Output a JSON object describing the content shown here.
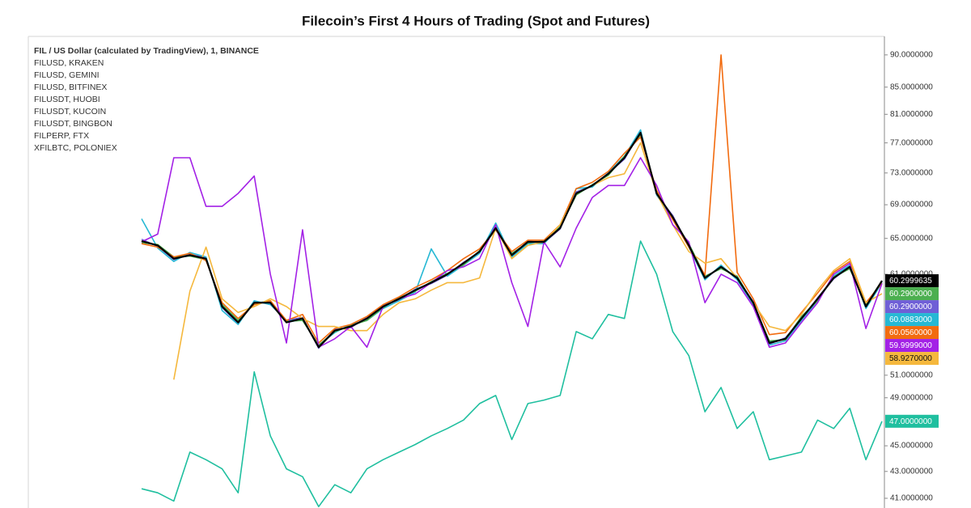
{
  "chart_data": {
    "type": "line",
    "title": "Filecoin’s First 4 Hours of Trading (Spot and Futures)",
    "log_scale": true,
    "ylim": [
      40.3,
      93
    ],
    "yticks": [
      {
        "value": 41,
        "label": "41.0000000"
      },
      {
        "value": 43,
        "label": "43.0000000"
      },
      {
        "value": 45,
        "label": "45.0000000"
      },
      {
        "value": 49,
        "label": "49.0000000"
      },
      {
        "value": 51,
        "label": "51.0000000"
      },
      {
        "value": 61,
        "label": "61.0000000"
      },
      {
        "value": 65,
        "label": "65.0000000"
      },
      {
        "value": 69,
        "label": "69.0000000"
      },
      {
        "value": 73,
        "label": "73.0000000"
      },
      {
        "value": 77,
        "label": "77.0000000"
      },
      {
        "value": 81,
        "label": "81.0000000"
      },
      {
        "value": 85,
        "label": "85.0000000"
      },
      {
        "value": 90,
        "label": "90.0000000"
      }
    ],
    "series": [
      {
        "name": "FIL / US Dollar (calculated by TradingView), 1, BINANCE",
        "color": "#000000",
        "last_price": 60.2999635,
        "values": [
          64.7,
          64.2,
          62.7,
          63.1,
          62.7,
          57.6,
          56.0,
          58.0,
          58.0,
          56.0,
          56.4,
          53.6,
          55.2,
          55.6,
          56.4,
          57.6,
          58.4,
          59.3,
          60.1,
          61.0,
          62.2,
          63.5,
          66.2,
          63.1,
          64.6,
          64.6,
          66.2,
          70.4,
          71.4,
          72.9,
          75.0,
          78.4,
          70.4,
          67.5,
          64.2,
          60.6,
          61.8,
          60.6,
          58.0,
          54.0,
          54.4,
          56.4,
          58.4,
          60.6,
          61.8,
          57.6,
          60.2999635
        ]
      },
      {
        "name": "FILUSD, KRAKEN",
        "color": "#a321e6",
        "last_price": {
          "value": 59.9999,
          "label": "59.9999000"
        },
        "values": [
          64.6,
          65.5,
          75.0,
          75.0,
          68.8,
          68.8,
          70.4,
          72.6,
          61.0,
          54.0,
          66.0,
          53.6,
          54.4,
          55.6,
          53.6,
          57.6,
          58.4,
          58.9,
          60.1,
          61.4,
          61.8,
          62.7,
          66.6,
          60.1,
          55.6,
          64.6,
          61.8,
          66.2,
          69.9,
          71.4,
          71.4,
          75.0,
          71.4,
          66.6,
          64.6,
          58.0,
          61.0,
          60.1,
          57.6,
          53.6,
          54.0,
          56.0,
          58.0,
          61.0,
          62.2,
          55.4,
          59.9999
        ]
      },
      {
        "name": "FILUSD, GEMINI",
        "color": "#f5b83d",
        "last_price": {
          "value": 58.927,
          "label": "58.9270000"
        },
        "values": [
          null,
          null,
          50.6,
          59.2,
          64.0,
          58.4,
          57.0,
          57.6,
          58.4,
          57.6,
          56.4,
          55.6,
          55.6,
          55.2,
          55.2,
          56.8,
          58.0,
          58.4,
          59.3,
          60.1,
          60.1,
          60.6,
          66.2,
          62.7,
          64.2,
          64.6,
          66.6,
          70.4,
          71.4,
          72.4,
          72.9,
          77.0,
          70.4,
          66.6,
          63.5,
          62.2,
          62.7,
          60.6,
          58.0,
          55.6,
          55.2,
          56.8,
          59.3,
          61.4,
          62.7,
          58.0,
          58.927
        ]
      },
      {
        "name": "FILUSD, BITFINEX",
        "color": "#f26b0f",
        "last_price": {
          "value": 60.056,
          "label": "60.0560000"
        },
        "values": [
          64.4,
          64.0,
          62.9,
          63.3,
          62.5,
          58.0,
          56.4,
          57.8,
          58.2,
          56.2,
          56.8,
          54.0,
          55.4,
          55.8,
          56.6,
          57.8,
          58.6,
          59.6,
          60.4,
          61.4,
          62.7,
          63.8,
          66.0,
          63.5,
          64.8,
          64.8,
          66.6,
          71.0,
          71.8,
          73.2,
          75.6,
          77.8,
          70.8,
          67.2,
          64.0,
          60.9,
          90.0,
          61.2,
          58.4,
          54.8,
          55.0,
          57.0,
          59.0,
          61.2,
          62.4,
          58.0,
          60.056
        ]
      },
      {
        "name": "FILUSDT, HUOBI",
        "color": "#4caf50",
        "last_price": {
          "value": 60.29,
          "label": "60.2900000"
        },
        "values": [
          64.5,
          64.3,
          62.9,
          63.0,
          62.6,
          57.8,
          56.2,
          57.9,
          58.2,
          56.1,
          56.2,
          53.8,
          55.1,
          55.7,
          56.2,
          57.5,
          58.5,
          59.2,
          60.2,
          61.1,
          62.0,
          63.6,
          66.0,
          63.3,
          64.5,
          64.7,
          66.3,
          70.2,
          71.5,
          72.7,
          75.2,
          78.1,
          70.6,
          67.3,
          64.4,
          60.8,
          61.6,
          60.8,
          57.9,
          54.2,
          54.3,
          56.6,
          58.2,
          60.7,
          61.6,
          57.8,
          60.29
        ]
      },
      {
        "name": "FILUSDT, KUCOIN",
        "color": "#26b8d4",
        "last_price": {
          "value": 60.0883,
          "label": "60.0883000"
        },
        "values": [
          67.3,
          63.9,
          62.4,
          63.4,
          62.9,
          57.2,
          55.8,
          58.2,
          57.8,
          56.2,
          56.2,
          53.8,
          55.0,
          55.8,
          56.2,
          57.4,
          58.2,
          59.1,
          63.8,
          60.8,
          62.0,
          63.3,
          66.8,
          62.9,
          64.4,
          64.4,
          66.4,
          71.0,
          71.2,
          73.0,
          75.2,
          78.8,
          70.2,
          67.3,
          64.0,
          60.4,
          62.0,
          60.4,
          57.8,
          53.8,
          54.2,
          56.2,
          58.2,
          60.8,
          62.0,
          57.4,
          60.0883
        ]
      },
      {
        "name": "FILUSDT, BINGBON",
        "color": "#6f5fd6",
        "last_price": {
          "value": 60.29,
          "label": "60.2900000"
        },
        "values": [
          64.9,
          64.1,
          62.6,
          63.2,
          62.8,
          57.5,
          55.9,
          58.1,
          57.9,
          56.2,
          56.5,
          53.5,
          55.3,
          55.5,
          56.5,
          57.7,
          58.3,
          59.4,
          60.0,
          60.9,
          62.3,
          63.4,
          66.3,
          63.0,
          64.7,
          64.5,
          66.1,
          70.6,
          71.3,
          73.0,
          74.8,
          78.6,
          70.2,
          67.7,
          64.1,
          60.5,
          61.9,
          60.5,
          58.1,
          53.9,
          54.5,
          56.3,
          58.5,
          60.5,
          61.9,
          57.5,
          60.29
        ]
      },
      {
        "name": "FILPERP, FTX",
        "color": "#1e88e5",
        "values": [
          64.6,
          64.2,
          62.8,
          63.0,
          62.7,
          57.7,
          56.1,
          58.0,
          58.1,
          56.0,
          56.3,
          53.7,
          55.2,
          55.6,
          56.3,
          57.6,
          58.4,
          59.3,
          60.1,
          61.0,
          62.1,
          63.5,
          66.1,
          63.1,
          64.6,
          64.6,
          66.2,
          70.3,
          71.4,
          72.8,
          75.1,
          78.2,
          70.5,
          67.4,
          64.3,
          60.7,
          61.7,
          60.7,
          58.0,
          54.1,
          54.4,
          56.5,
          58.3,
          60.6,
          61.7,
          57.7,
          60.2
        ]
      },
      {
        "name": "XFILBTC, POLONIEX",
        "color": "#1fbf9f",
        "last_price": {
          "value": 47,
          "label": "47.0000000"
        },
        "values": [
          41.7,
          41.4,
          40.8,
          44.5,
          43.9,
          43.2,
          41.4,
          51.3,
          45.8,
          43.2,
          42.6,
          40.4,
          42.0,
          41.4,
          43.2,
          43.9,
          44.5,
          45.1,
          45.8,
          46.4,
          47.1,
          48.5,
          49.2,
          45.5,
          48.5,
          48.8,
          49.2,
          55.1,
          54.4,
          56.8,
          56.4,
          64.7,
          61.0,
          55.1,
          52.8,
          47.8,
          49.9,
          46.4,
          47.8,
          43.9,
          44.2,
          44.5,
          47.1,
          46.4,
          48.1,
          43.9,
          47.0
        ]
      }
    ]
  }
}
